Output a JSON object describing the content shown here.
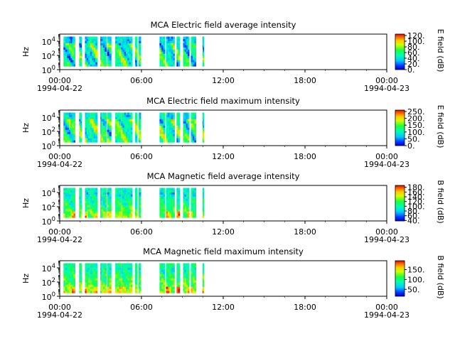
{
  "chart_data": [
    {
      "type": "heatmap",
      "title": "MCA  Electric field average intensity",
      "ylabel": "Hz",
      "y_scale": "log",
      "ylim": [
        1,
        100000
      ],
      "y_ticks": [
        {
          "exp": "0",
          "v": 1
        },
        {
          "exp": "2",
          "v": 100
        },
        {
          "exp": "4",
          "v": 10000
        }
      ],
      "x_ticks": [
        "00:00",
        "06:00",
        "12:00",
        "18:00",
        "00:00"
      ],
      "x_dates": [
        "1994-04-22",
        "1994-04-23"
      ],
      "colorbar_label": "E field (dB)",
      "colorbar_ticks": [
        "120.",
        "100.",
        "80.",
        "60.",
        "40.",
        "20.",
        "0."
      ],
      "colorbar_range": [
        0,
        125
      ],
      "colorscale": "rainbow",
      "data_intervals_hours": [
        [
          0.55,
          1.35
        ],
        [
          1.35,
          2.25
        ],
        [
          2.85,
          3.2
        ],
        [
          3.7,
          4.4
        ],
        [
          4.45,
          5.5
        ],
        [
          5.95,
          6.3
        ],
        [
          6.35,
          6.85
        ],
        [
          6.95,
          7.55
        ],
        [
          8.15,
          8.95
        ],
        [
          9.0,
          10.65
        ],
        [
          11.05,
          11.35
        ],
        [
          11.55,
          11.9
        ],
        [
          14.65,
          15.45
        ],
        [
          15.6,
          16.85
        ],
        [
          17.15,
          17.6
        ],
        [
          18.1,
          19.0
        ],
        [
          19.25,
          20.0
        ],
        [
          20.95,
          21.15
        ]
      ],
      "gaps": [
        [
          1.22,
          1.28
        ],
        [
          4.7,
          4.78
        ]
      ]
    },
    {
      "type": "heatmap",
      "title": "MCA  Electric field maximum intensity",
      "ylabel": "Hz",
      "y_scale": "log",
      "ylim": [
        1,
        100000
      ],
      "y_ticks": [
        {
          "exp": "0",
          "v": 1
        },
        {
          "exp": "2",
          "v": 100
        },
        {
          "exp": "4",
          "v": 10000
        }
      ],
      "x_ticks": [
        "00:00",
        "06:00",
        "12:00",
        "18:00",
        "00:00"
      ],
      "x_dates": [
        "1994-04-22",
        "1994-04-23"
      ],
      "colorbar_label": "E field (dB)",
      "colorbar_ticks": [
        "250.",
        "200.",
        "150.",
        "100.",
        "50.",
        "0."
      ],
      "colorbar_range": [
        0,
        260
      ],
      "colorscale": "rainbow",
      "data_intervals_hours": [
        [
          0.55,
          1.35
        ],
        [
          1.35,
          2.25
        ],
        [
          2.85,
          3.2
        ],
        [
          3.7,
          4.4
        ],
        [
          4.45,
          5.5
        ],
        [
          5.95,
          6.3
        ],
        [
          6.35,
          6.85
        ],
        [
          6.95,
          7.55
        ],
        [
          8.15,
          8.95
        ],
        [
          9.0,
          10.65
        ],
        [
          11.05,
          11.35
        ],
        [
          11.55,
          11.9
        ],
        [
          14.65,
          15.45
        ],
        [
          15.6,
          16.85
        ],
        [
          17.15,
          17.6
        ],
        [
          18.1,
          19.0
        ],
        [
          19.25,
          20.0
        ],
        [
          20.95,
          21.15
        ]
      ],
      "gaps": [
        [
          1.22,
          1.28
        ],
        [
          4.7,
          4.78
        ]
      ]
    },
    {
      "type": "heatmap",
      "title": "MCA  Magnetic field average intensity",
      "ylabel": "Hz",
      "y_scale": "log",
      "ylim": [
        1,
        100000
      ],
      "y_ticks": [
        {
          "exp": "0",
          "v": 1
        },
        {
          "exp": "2",
          "v": 100
        },
        {
          "exp": "4",
          "v": 10000
        }
      ],
      "x_ticks": [
        "00:00",
        "06:00",
        "12:00",
        "18:00",
        "00:00"
      ],
      "x_dates": [
        "1994-04-22",
        "1994-04-23"
      ],
      "colorbar_label": "B field (dB)",
      "colorbar_ticks": [
        "180.",
        "160.",
        "140.",
        "120.",
        "100.",
        "80.",
        "60.",
        "40."
      ],
      "colorbar_range": [
        38,
        188
      ],
      "colorscale": "rainbow",
      "data_intervals_hours": [
        [
          0.55,
          1.35
        ],
        [
          1.35,
          2.25
        ],
        [
          2.85,
          3.2
        ],
        [
          3.7,
          4.4
        ],
        [
          4.45,
          5.5
        ],
        [
          5.95,
          6.3
        ],
        [
          6.35,
          6.85
        ],
        [
          6.95,
          7.55
        ],
        [
          8.15,
          8.95
        ],
        [
          9.0,
          10.65
        ],
        [
          11.05,
          11.35
        ],
        [
          11.55,
          11.9
        ],
        [
          14.65,
          15.45
        ],
        [
          15.6,
          16.85
        ],
        [
          17.15,
          17.6
        ],
        [
          18.1,
          19.0
        ],
        [
          19.25,
          20.0
        ],
        [
          20.95,
          21.15
        ]
      ],
      "gaps": [
        [
          1.22,
          1.28
        ],
        [
          4.7,
          4.78
        ]
      ]
    },
    {
      "type": "heatmap",
      "title": "MCA  Magnetic field maximum intensity",
      "ylabel": "Hz",
      "y_scale": "log",
      "ylim": [
        1,
        100000
      ],
      "y_ticks": [
        {
          "exp": "0",
          "v": 1
        },
        {
          "exp": "2",
          "v": 100
        },
        {
          "exp": "4",
          "v": 10000
        }
      ],
      "x_ticks": [
        "00:00",
        "06:00",
        "12:00",
        "18:00",
        "00:00"
      ],
      "x_dates": [
        "1994-04-22",
        "1994-04-23"
      ],
      "colorbar_label": "B field (dB)",
      "colorbar_ticks": [
        "150.",
        "100.",
        "50."
      ],
      "colorbar_range": [
        15,
        195
      ],
      "colorscale": "rainbow",
      "data_intervals_hours": [
        [
          0.55,
          1.35
        ],
        [
          1.35,
          2.25
        ],
        [
          2.85,
          3.2
        ],
        [
          3.7,
          4.4
        ],
        [
          4.45,
          5.5
        ],
        [
          5.95,
          6.3
        ],
        [
          6.35,
          6.85
        ],
        [
          6.95,
          7.55
        ],
        [
          8.15,
          8.95
        ],
        [
          9.0,
          10.65
        ],
        [
          11.05,
          11.35
        ],
        [
          11.55,
          11.9
        ],
        [
          14.65,
          15.45
        ],
        [
          15.6,
          16.85
        ],
        [
          17.15,
          17.6
        ],
        [
          18.1,
          19.0
        ],
        [
          19.25,
          20.0
        ],
        [
          20.95,
          21.15
        ]
      ],
      "gaps": [
        [
          1.22,
          1.28
        ],
        [
          4.7,
          4.78
        ]
      ]
    }
  ]
}
